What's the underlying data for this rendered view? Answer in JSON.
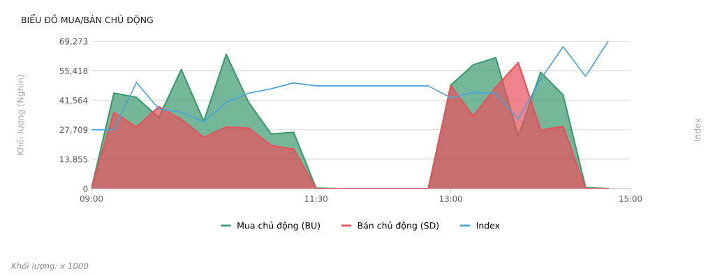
{
  "chart_data": {
    "type": "area",
    "title": "BIỂU ĐỒ MUA/BÁN CHỦ ĐỘNG",
    "ylabel": "Khối lượng (Nghìn)",
    "annotations": [
      "Index",
      "Khối lượng: x 1000"
    ],
    "x": [
      9,
      9.25,
      9.5,
      9.75,
      10,
      10.25,
      10.5,
      10.75,
      11,
      11.25,
      11.5,
      11.75,
      12,
      12.25,
      12.5,
      12.75,
      13,
      13.25,
      13.5,
      13.75,
      14,
      14.25,
      14.5,
      14.75
    ],
    "series": [
      {
        "name": "Mua chủ động (BU)",
        "color": "#3a9a6d",
        "values": [
          0,
          44900,
          42900,
          33400,
          56000,
          31700,
          63100,
          40500,
          25700,
          26500,
          300,
          0,
          0,
          0,
          0,
          0,
          48700,
          58200,
          61600,
          24600,
          54700,
          44000,
          600,
          0
        ]
      },
      {
        "name": "Bán chủ động (SD)",
        "color": "#e8505b",
        "values": [
          0,
          35900,
          28900,
          38500,
          32600,
          24100,
          28900,
          28500,
          20300,
          18600,
          0,
          0,
          0,
          0,
          0,
          0,
          48400,
          34100,
          47600,
          59300,
          27600,
          29200,
          0,
          0
        ]
      },
      {
        "name": "Index",
        "type": "line",
        "color": "#4aa3df",
        "values": [
          27700,
          27700,
          49900,
          37400,
          35900,
          31400,
          40500,
          44900,
          46900,
          49700,
          48300,
          48300,
          48300,
          48300,
          48300,
          48300,
          42700,
          45200,
          44800,
          32600,
          51400,
          66700,
          52800,
          69200
        ]
      }
    ],
    "xlim": [
      9,
      15
    ],
    "xticks": [
      {
        "value": 9,
        "label": "09:00"
      },
      {
        "value": 11.5,
        "label": "11:30"
      },
      {
        "value": 13,
        "label": "13:00"
      },
      {
        "value": 15,
        "label": "15:00"
      }
    ],
    "ylim": [
      0,
      69273
    ],
    "yticks": [
      0,
      {
        "value": 13855,
        "label": "13,855"
      },
      {
        "value": 27709,
        "label": "27,709"
      },
      {
        "value": 41564,
        "label": "41,564"
      },
      {
        "value": 55418,
        "label": "55,418"
      },
      {
        "value": 69273,
        "label": "69,273"
      }
    ],
    "grid": "y",
    "legend": "bottom",
    "marker": "none",
    "line_style": "solid"
  }
}
